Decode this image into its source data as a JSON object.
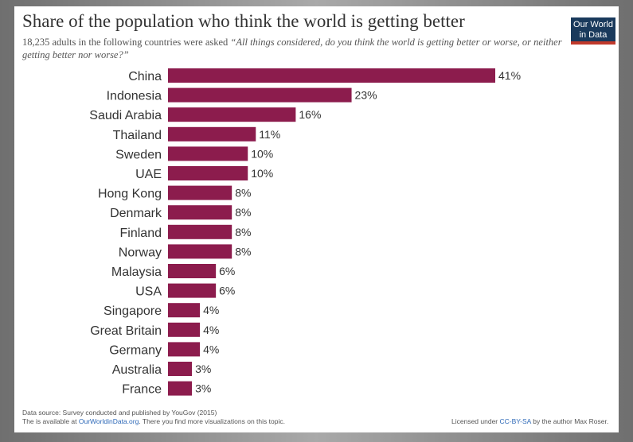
{
  "chart_data": {
    "type": "bar",
    "orientation": "horizontal",
    "title": "Share of the population who think the world is getting better",
    "subtitle_prefix": "18,235 adults in the following countries were asked ",
    "subtitle_question": "“All things considered, do you think the world is getting better or worse, or neither getting better nor worse?”",
    "categories": [
      "China",
      "Indonesia",
      "Saudi Arabia",
      "Thailand",
      "Sweden",
      "UAE",
      "Hong Kong",
      "Denmark",
      "Finland",
      "Norway",
      "Malaysia",
      "USA",
      "Singapore",
      "Great Britain",
      "Germany",
      "Australia",
      "France"
    ],
    "values": [
      41,
      23,
      16,
      11,
      10,
      10,
      8,
      8,
      8,
      8,
      6,
      6,
      4,
      4,
      4,
      3,
      3
    ],
    "value_suffix": "%",
    "xlim": [
      0,
      41
    ],
    "bar_color": "#8c1c4d",
    "grid": false
  },
  "logo": {
    "line1": "Our World",
    "line2": "in Data",
    "bg_color": "#1a3a5c",
    "accent_color": "#c0392b"
  },
  "footer": {
    "source": "Data source: Survey conducted and published by YouGov (2015)",
    "available_prefix": "The is available at ",
    "available_link": "OurWorldinData.org",
    "available_suffix": ". There you find more visualizations on this topic.",
    "license_prefix": "Licensed under ",
    "license_link": "CC-BY-SA",
    "license_suffix": " by the author Max Roser.",
    "link_color": "#2f6ab8"
  }
}
